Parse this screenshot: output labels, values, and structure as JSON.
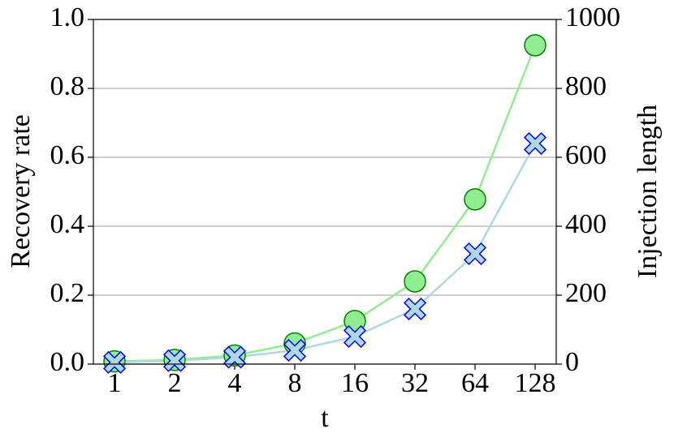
{
  "chart_data": {
    "type": "line",
    "x_label": "t",
    "y_label": "Recovery rate",
    "y2_label": "Injection length",
    "categories": [
      "1",
      "2",
      "4",
      "8",
      "16",
      "32",
      "64",
      "128"
    ],
    "series": [
      {
        "color": "#90ee90",
        "edge_color": "#008000",
        "marker": "circle",
        "values": [
          0.008,
          0.012,
          0.025,
          0.06,
          0.125,
          0.24,
          0.478,
          0.925
        ]
      },
      {
        "color": "#add8e6",
        "edge_color": "#0000ff",
        "marker": "x",
        "axis": "y2",
        "values": [
          5,
          10,
          20,
          40,
          80,
          160,
          320,
          640
        ]
      }
    ],
    "ylim": [
      0,
      1
    ],
    "yticks": [
      {
        "value": 0,
        "label": "0.0"
      },
      0.2,
      0.4,
      0.6,
      0.8,
      {
        "value": 1,
        "label": "1.0"
      }
    ],
    "y2lim": [
      0,
      1000
    ],
    "y2ticks": [
      0,
      200,
      400,
      600,
      800,
      1000
    ],
    "grid": true
  }
}
